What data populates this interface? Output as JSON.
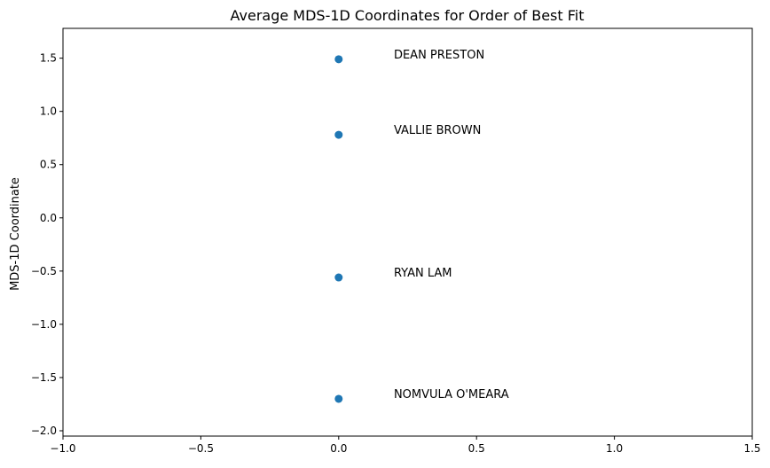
{
  "chart_data": {
    "type": "scatter",
    "title": "Average MDS-1D Coordinates for Order of Best Fit",
    "xlabel": "",
    "ylabel": "MDS-1D Coordinate",
    "xlim": [
      -1.0,
      1.5
    ],
    "ylim": [
      -2.05,
      1.78
    ],
    "xticks": [
      -1.0,
      -0.5,
      0.0,
      0.5,
      1.0,
      1.5
    ],
    "xtick_labels": [
      "−1.0",
      "−0.5",
      "0.0",
      "0.5",
      "1.0",
      "1.5"
    ],
    "yticks": [
      1.5,
      1.0,
      0.5,
      0.0,
      -0.5,
      -1.0,
      -1.5,
      -2.0
    ],
    "ytick_labels": [
      "1.5",
      "1.0",
      "0.5",
      "0.0",
      "−0.5",
      "−1.0",
      "−1.5",
      "−2.0"
    ],
    "grid": false,
    "points": [
      {
        "x": 0.0,
        "y": 1.49,
        "label": "DEAN PRESTON"
      },
      {
        "x": 0.0,
        "y": 0.78,
        "label": "VALLIE BROWN"
      },
      {
        "x": 0.0,
        "y": -0.56,
        "label": "RYAN LAM"
      },
      {
        "x": 0.0,
        "y": -1.7,
        "label": "NOMVULA O'MEARA"
      }
    ],
    "point_color": "#1f77b4",
    "label_x_offset": 0.2
  }
}
